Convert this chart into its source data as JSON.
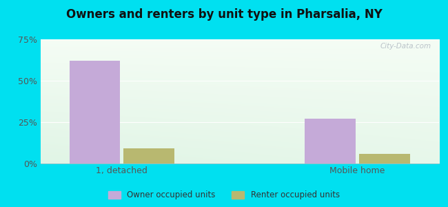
{
  "title": "Owners and renters by unit type in Pharsalia, NY",
  "categories": [
    "1, detached",
    "Mobile home"
  ],
  "owner_values": [
    62,
    27
  ],
  "renter_values": [
    9,
    6
  ],
  "owner_color": "#c5aad8",
  "renter_color": "#b8b870",
  "ylim": [
    0,
    75
  ],
  "yticks": [
    0,
    25,
    50,
    75
  ],
  "yticklabels": [
    "0%",
    "25%",
    "50%",
    "75%"
  ],
  "legend_owner": "Owner occupied units",
  "legend_renter": "Renter occupied units",
  "background_outer": "#00e0f0",
  "watermark": "City-Data.com",
  "bar_width": 0.28,
  "x_positions": [
    0.35,
    1.65
  ]
}
